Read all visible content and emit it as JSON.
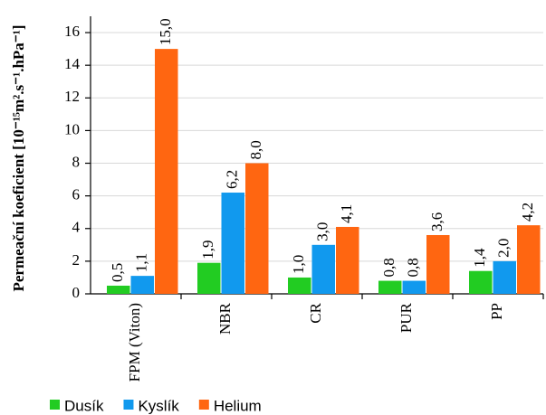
{
  "chart_data": {
    "type": "bar",
    "y_label": "Permeační koeficient [10⁻¹⁵m².s⁻¹.hPa⁻¹]",
    "categories": [
      "FPM (Viton)",
      "NBR",
      "CR",
      "PUR",
      "PP"
    ],
    "series": [
      {
        "name": "Dusík",
        "color": "#22cc22",
        "values": [
          0.5,
          1.9,
          1.0,
          0.8,
          1.4
        ],
        "value_labels": [
          "0,5",
          "1,9",
          "1,0",
          "0,8",
          "1,4"
        ]
      },
      {
        "name": "Kyslík",
        "color": "#1199ee",
        "values": [
          1.1,
          6.2,
          3.0,
          0.8,
          2.0
        ],
        "value_labels": [
          "1,1",
          "6,2",
          "3,0",
          "0,8",
          "2,0"
        ]
      },
      {
        "name": "Helium",
        "color": "#ff6611",
        "values": [
          15.0,
          8.0,
          4.1,
          3.6,
          4.2
        ],
        "value_labels": [
          "15,0",
          "8,0",
          "4,1",
          "3,6",
          "4,2"
        ]
      }
    ],
    "ylim": [
      0,
      17
    ],
    "yticks": [
      0,
      2,
      4,
      6,
      8,
      10,
      12,
      14,
      16
    ],
    "grid": true,
    "legend": "bottom"
  }
}
